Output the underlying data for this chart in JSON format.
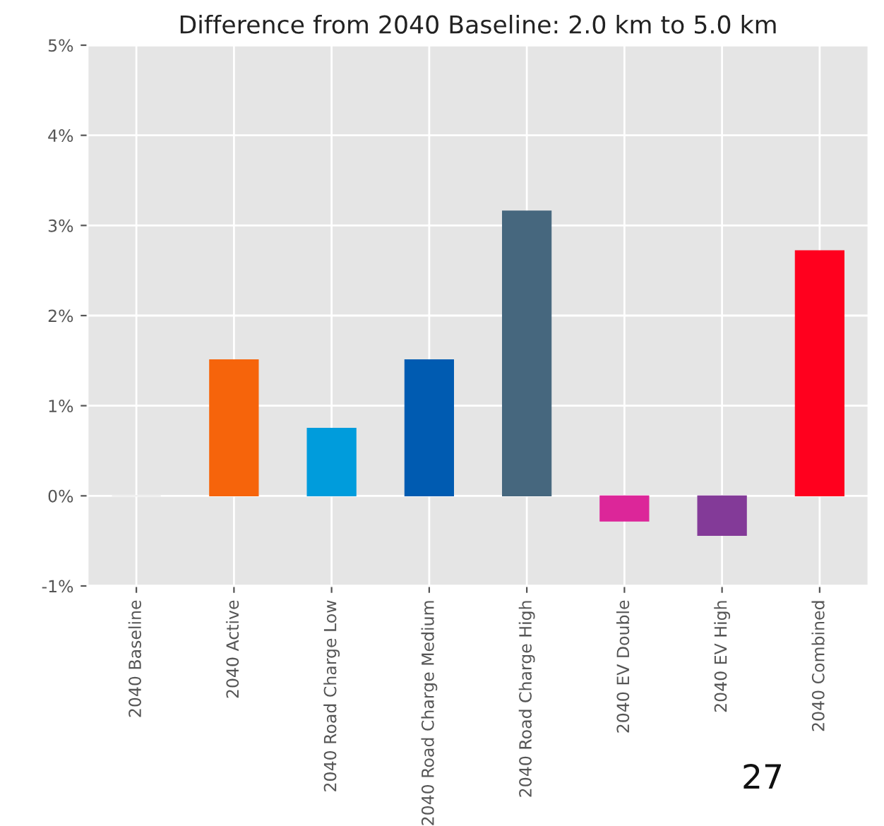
{
  "chart_data": {
    "type": "bar",
    "title": "Difference from 2040 Baseline: 2.0 km to 5.0 km",
    "categories": [
      "2040 Baseline",
      "2040 Active",
      "2040 Road Charge Low",
      "2040 Road Charge Medium",
      "2040 Road Charge High",
      "2040 EV Double",
      "2040 EV High",
      "2040 Combined"
    ],
    "values": [
      0,
      1.51,
      0.75,
      1.51,
      3.16,
      -0.28,
      -0.44,
      2.72
    ],
    "colors": [
      "#e5e5e5",
      "#f6640b",
      "#009cdc",
      "#005bb1",
      "#46677e",
      "#dc2699",
      "#833a98",
      "#ff001e"
    ],
    "ylim": [
      -1,
      5
    ],
    "yticks": [
      {
        "value": -1,
        "label": "-1%"
      },
      {
        "value": 0,
        "label": "0%"
      },
      {
        "value": 1,
        "label": "1%"
      },
      {
        "value": 2,
        "label": "2%"
      },
      {
        "value": 3,
        "label": "3%"
      },
      {
        "value": 4,
        "label": "4%"
      },
      {
        "value": 5,
        "label": "5%"
      }
    ],
    "grid": true,
    "legend": false,
    "annotations": [
      "27"
    ]
  }
}
